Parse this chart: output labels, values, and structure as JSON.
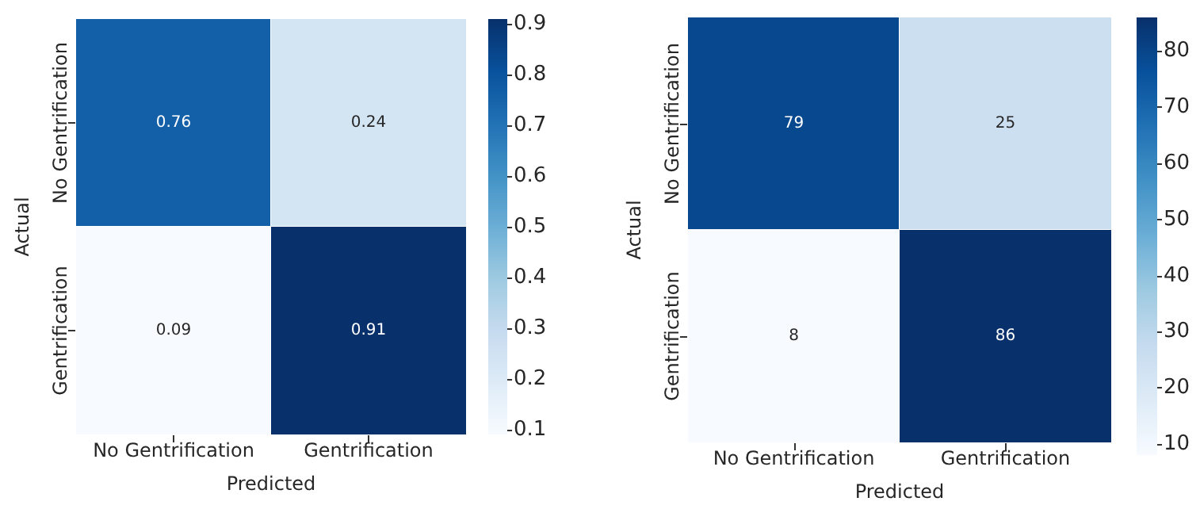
{
  "chart_data": [
    {
      "type": "heatmap",
      "categories": [
        "No Gentrification",
        "Gentrification"
      ],
      "y_categories": [
        "No Gentrification",
        "Gentrification"
      ],
      "cells": [
        [
          0.76,
          0.24
        ],
        [
          0.09,
          0.91
        ]
      ],
      "xlabel": "Predicted",
      "ylabel": "Actual",
      "clim": [
        0.09,
        0.91
      ],
      "cticks": [
        0.1,
        0.2,
        0.3,
        0.4,
        0.5,
        0.6,
        0.7,
        0.8,
        0.9
      ],
      "data_labels": true
    },
    {
      "type": "heatmap",
      "categories": [
        "No Gentrification",
        "Gentrification"
      ],
      "y_categories": [
        "No Gentrification",
        "Gentrification"
      ],
      "cells": [
        [
          79,
          25
        ],
        [
          8,
          86
        ]
      ],
      "xlabel": "Predicted",
      "ylabel": "Actual",
      "clim": [
        8,
        86
      ],
      "cticks": [
        10,
        20,
        30,
        40,
        50,
        60,
        70,
        80
      ],
      "data_labels": true
    }
  ]
}
